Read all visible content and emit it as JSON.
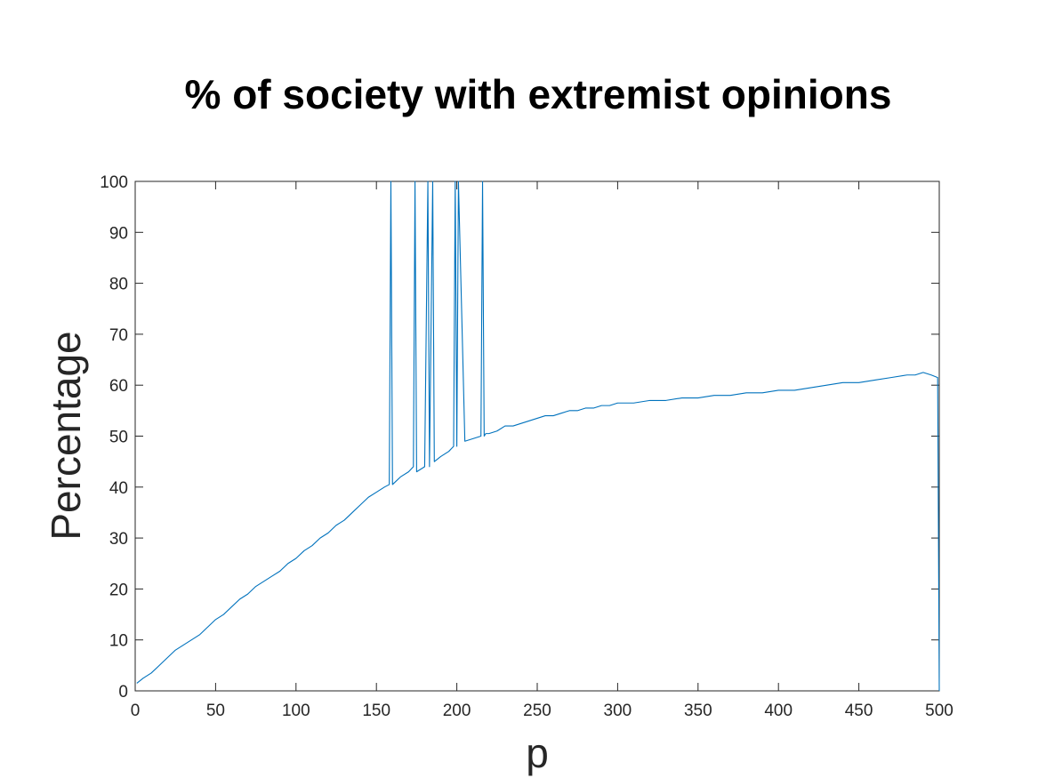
{
  "chart_data": {
    "type": "line",
    "title": "% of society with extremist opinions",
    "xlabel": "p",
    "ylabel": "Percentage",
    "xlim": [
      0,
      500
    ],
    "ylim": [
      0,
      100
    ],
    "xticks": [
      0,
      50,
      100,
      150,
      200,
      250,
      300,
      350,
      400,
      450,
      500
    ],
    "yticks": [
      0,
      10,
      20,
      30,
      40,
      50,
      60,
      70,
      80,
      90,
      100
    ],
    "grid": false,
    "legend": "none",
    "series_color": "#0072BD",
    "series": [
      {
        "x": [
          1,
          5,
          10,
          15,
          20,
          25,
          30,
          35,
          40,
          45,
          50,
          55,
          60,
          65,
          70,
          75,
          80,
          85,
          90,
          95,
          100,
          105,
          110,
          115,
          120,
          125,
          130,
          135,
          140,
          145,
          150,
          155,
          158,
          159,
          160,
          165,
          170,
          173,
          174,
          175,
          180,
          182,
          183,
          185,
          186,
          190,
          195,
          198,
          199,
          200,
          201,
          205,
          210,
          215,
          216,
          217,
          218,
          220,
          225,
          230,
          235,
          240,
          245,
          250,
          255,
          260,
          265,
          270,
          275,
          280,
          285,
          290,
          295,
          300,
          310,
          320,
          330,
          340,
          350,
          360,
          370,
          380,
          390,
          400,
          410,
          420,
          430,
          440,
          450,
          460,
          470,
          480,
          485,
          490,
          495,
          499,
          500
        ],
        "y": [
          1.5,
          2.5,
          3.5,
          5,
          6.5,
          8,
          9,
          10,
          11,
          12.5,
          14,
          15,
          16.5,
          18,
          19,
          20.5,
          21.5,
          22.5,
          23.5,
          25,
          26,
          27.5,
          28.5,
          30,
          31,
          32.5,
          33.5,
          35,
          36.5,
          38,
          39,
          40,
          40.5,
          100,
          40.5,
          42,
          43,
          44,
          100,
          43,
          44,
          100,
          44,
          100,
          45,
          46,
          47,
          48,
          100,
          48,
          100,
          49,
          49.5,
          50,
          100,
          50,
          50.5,
          50.5,
          51,
          52,
          52,
          52.5,
          53,
          53.5,
          54,
          54,
          54.5,
          55,
          55,
          55.5,
          55.5,
          56,
          56,
          56.5,
          56.5,
          57,
          57,
          57.5,
          57.5,
          58,
          58,
          58.5,
          58.5,
          59,
          59,
          59.5,
          60,
          60.5,
          60.5,
          61,
          61.5,
          62,
          62,
          62.5,
          62,
          61.5,
          0
        ]
      }
    ]
  }
}
